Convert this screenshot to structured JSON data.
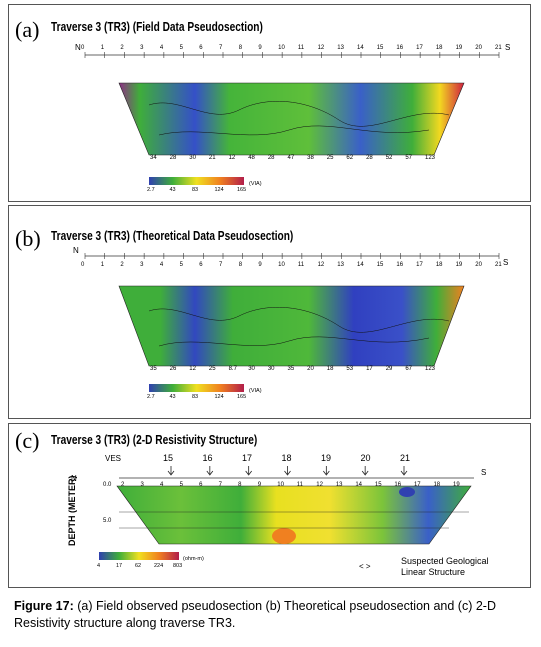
{
  "panels": [
    {
      "label": "(a)",
      "title": "Traverse 3 (TR3) (Field Data Pseudosection)",
      "north": "N",
      "south": "S",
      "axis_ticks": [
        "0",
        "1",
        "2",
        "3",
        "4",
        "5",
        "6",
        "7",
        "8",
        "9",
        "10",
        "11",
        "12",
        "13",
        "14",
        "15",
        "16",
        "17",
        "18",
        "19",
        "20",
        "21"
      ],
      "bottom_values": [
        "34",
        "28",
        "30",
        "21",
        "12",
        "48",
        "28",
        "47",
        "38",
        "25",
        "62",
        "28",
        "52",
        "57",
        "123"
      ],
      "scale_ticks": [
        "2.7",
        "43",
        "83",
        "124",
        "165"
      ],
      "scale_unit": "(VIA)"
    },
    {
      "label": "(b)",
      "title": "Traverse 3 (TR3) (Theoretical Data Pseudosection)",
      "north": "N",
      "south": "S",
      "axis_ticks": [
        "0",
        "1",
        "2",
        "3",
        "4",
        "5",
        "6",
        "7",
        "8",
        "9",
        "10",
        "11",
        "12",
        "13",
        "14",
        "15",
        "16",
        "17",
        "18",
        "19",
        "20",
        "21"
      ],
      "bottom_values": [
        "35",
        "26",
        "12",
        "25",
        "8.7",
        "30",
        "30",
        "35",
        "20",
        "18",
        "53",
        "17",
        "29",
        "67",
        "123"
      ],
      "scale_ticks": [
        "2.7",
        "43",
        "83",
        "124",
        "165"
      ],
      "scale_unit": "(VIA)"
    },
    {
      "label": "(c)",
      "title": "Traverse 3 (TR3) (2-D Resistivity Structure)",
      "ves_label": "VES",
      "ves_numbers": [
        "15",
        "16",
        "17",
        "18",
        "19",
        "20",
        "21"
      ],
      "north": "N",
      "south": "S",
      "axis_ticks": [
        "2",
        "3",
        "4",
        "5",
        "6",
        "7",
        "8",
        "9",
        "10",
        "11",
        "12",
        "13",
        "14",
        "15",
        "16",
        "17",
        "18",
        "19"
      ],
      "depth_label": "DEPTH (METER)",
      "depth_ticks": [
        "0.0",
        "5.0"
      ],
      "scale_ticks": [
        "4",
        "17",
        "62",
        "224",
        "803"
      ],
      "scale_unit": "(ohm-m)",
      "legend_symbol": "<   >",
      "legend_text_1": "Suspected Geological",
      "legend_text_2": "Linear Structure"
    }
  ],
  "caption": {
    "label": "Figure 17:",
    "text": "(a) Field observed pseudosection (b) Theoretical pseudosection and (c) 2-D Resistivity structure along traverse TR3."
  },
  "colors": {
    "high": "#b21e4a",
    "mid_high": "#f0e020",
    "mid": "#3fae3a",
    "low": "#2c3cb8",
    "orange": "#f08020",
    "frame": "#555555"
  }
}
